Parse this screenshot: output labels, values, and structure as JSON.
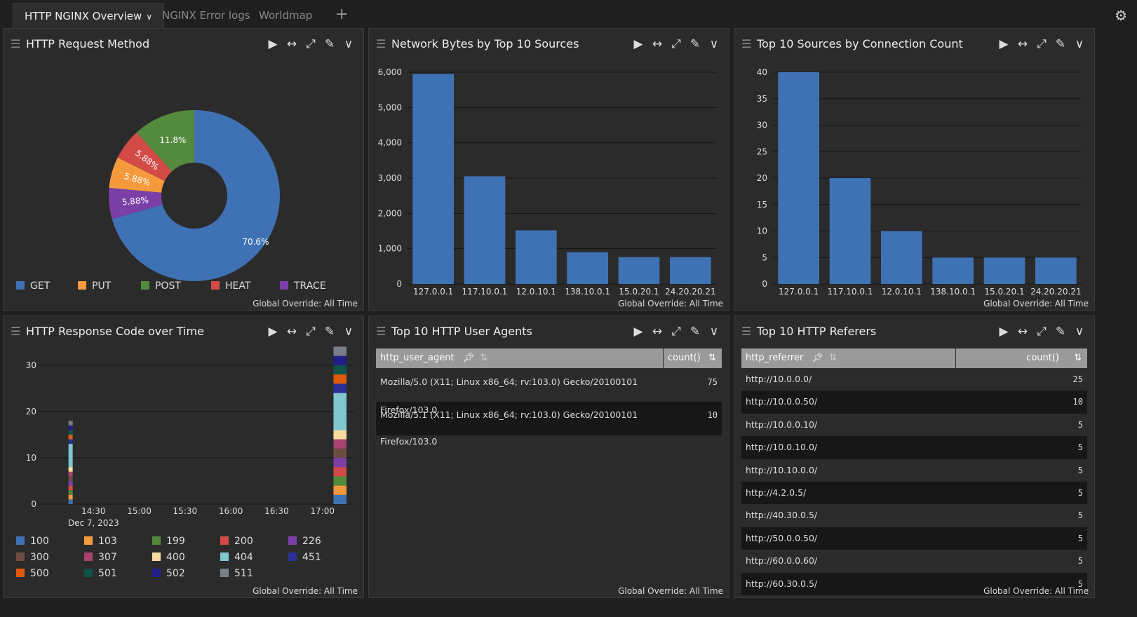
{
  "tabs": [
    {
      "label": "HTTP NGINX Overview",
      "active": true
    },
    {
      "label": "NGINX Error logs"
    },
    {
      "label": "Worldmap"
    }
  ],
  "footer_text": "Global Override: All Time",
  "panels": {
    "method": {
      "title": "HTTP Request Method"
    },
    "bytes": {
      "title": "Network Bytes by Top 10 Sources"
    },
    "conn": {
      "title": "Top 10 Sources by Connection Count"
    },
    "resp": {
      "title": "HTTP Response Code over Time"
    },
    "agents": {
      "title": "Top 10 HTTP User Agents"
    },
    "referers": {
      "title": "Top 10 HTTP Referers"
    }
  },
  "agents_table": {
    "col1": "http_user_agent",
    "col2": "count()",
    "rows": [
      {
        "agent": "Mozilla/5.0 (X11; Linux x86_64; rv:103.0) Gecko/20100101 Firefox/103.0",
        "count": "75"
      },
      {
        "agent": "Mozilla/5.1 (X11; Linux x86_64; rv:103.0) Gecko/20100101 Firefox/103.0",
        "count": "10"
      }
    ]
  },
  "referers_table": {
    "col1": "http_referrer",
    "col2": "count()",
    "rows": [
      {
        "ref": "http://10.0.0.0/",
        "count": "25"
      },
      {
        "ref": "http://10.0.0.50/",
        "count": "10"
      },
      {
        "ref": "http://10.0.0.10/",
        "count": "5"
      },
      {
        "ref": "http://10.0.10.0/",
        "count": "5"
      },
      {
        "ref": "http://10.10.0.0/",
        "count": "5"
      },
      {
        "ref": "http://4.2.0.5/",
        "count": "5"
      },
      {
        "ref": "http://40.30.0.5/",
        "count": "5"
      },
      {
        "ref": "http://50.0.0.50/",
        "count": "5"
      },
      {
        "ref": "http://60.0.0.60/",
        "count": "5"
      },
      {
        "ref": "http://60.30.0.5/",
        "count": "5"
      }
    ]
  },
  "chart_data": [
    {
      "id": "method",
      "type": "pie",
      "title": "HTTP Request Method",
      "slices": [
        {
          "label": "GET",
          "value": 70.6,
          "text": "70.6%",
          "color": "#3f72b4"
        },
        {
          "label": "TRACE",
          "value": 5.88,
          "text": "5.88%",
          "color": "#7b3fa8"
        },
        {
          "label": "PUT",
          "value": 5.88,
          "text": "5.88%",
          "color": "#f59a3c"
        },
        {
          "label": "HEAT",
          "value": 5.88,
          "text": "5.88%",
          "color": "#d24b46"
        },
        {
          "label": "POST",
          "value": 11.8,
          "text": "11.8%",
          "color": "#548a3c"
        }
      ],
      "legend": [
        "GET",
        "PUT",
        "POST",
        "HEAT",
        "TRACE"
      ]
    },
    {
      "id": "bytes",
      "type": "bar",
      "title": "Network Bytes by Top 10 Sources",
      "categories": [
        "127.0.0.1",
        "117.10.0.1",
        "12.0.10.1",
        "138.10.0.1",
        "15.0.20.1",
        "24.20.20.21"
      ],
      "values": [
        5950,
        3050,
        1520,
        900,
        760,
        760
      ],
      "ylim": [
        0,
        6000
      ],
      "yticks": [
        0,
        1000,
        2000,
        3000,
        4000,
        5000,
        6000
      ],
      "ytick_labels": [
        "0",
        "1,000",
        "2,000",
        "3,000",
        "4,000",
        "5,000",
        "6,000"
      ],
      "color": "#3f72b4"
    },
    {
      "id": "conn",
      "type": "bar",
      "title": "Top 10 Sources by Connection Count",
      "categories": [
        "127.0.0.1",
        "117.10.0.1",
        "12.0.10.1",
        "138.10.0.1",
        "15.0.20.1",
        "24.20.20.21"
      ],
      "values": [
        40,
        20,
        10,
        5,
        5,
        5
      ],
      "ylim": [
        0,
        40
      ],
      "yticks": [
        0,
        5,
        10,
        15,
        20,
        25,
        30,
        35,
        40
      ],
      "ytick_labels": [
        "0",
        "5",
        "10",
        "15",
        "20",
        "25",
        "30",
        "35",
        "40"
      ],
      "color": "#3f72b4"
    },
    {
      "id": "resp",
      "type": "bar",
      "stacked": true,
      "title": "HTTP Response Code over Time",
      "x_ticks": [
        "14:30",
        "15:00",
        "15:30",
        "16:00",
        "16:30",
        "17:00"
      ],
      "x_sub": "Dec 7, 2023",
      "ylim": [
        0,
        33
      ],
      "yticks": [
        0,
        10,
        20,
        30
      ],
      "ytick_labels": [
        "0",
        "10",
        "20",
        "30"
      ],
      "codes": [
        {
          "code": "100",
          "color": "#3f72b4"
        },
        {
          "code": "103",
          "color": "#f59a3c"
        },
        {
          "code": "199",
          "color": "#548a3c"
        },
        {
          "code": "200",
          "color": "#d24b46"
        },
        {
          "code": "226",
          "color": "#7b3fa8"
        },
        {
          "code": "300",
          "color": "#6d4c41"
        },
        {
          "code": "307",
          "color": "#a8426e"
        },
        {
          "code": "400",
          "color": "#f7dca0"
        },
        {
          "code": "404",
          "color": "#80c6cf"
        },
        {
          "code": "451",
          "color": "#2a2f96"
        },
        {
          "code": "500",
          "color": "#e05a0c"
        },
        {
          "code": "501",
          "color": "#0f5248"
        },
        {
          "code": "502",
          "color": "#221f8a"
        },
        {
          "code": "511",
          "color": "#7a7f87"
        }
      ],
      "stacks": [
        {
          "t": "14:15",
          "bars": [
            1,
            1,
            1,
            1,
            1,
            1,
            1,
            1,
            5,
            1,
            1,
            1,
            1,
            1
          ]
        },
        {
          "t": "17:10",
          "bars": [
            2,
            2,
            2,
            2,
            2,
            2,
            2,
            2,
            8,
            2,
            2,
            2,
            2,
            2
          ]
        },
        {
          "t": "17:13",
          "bars": [
            2,
            2,
            2,
            2,
            2,
            2,
            2,
            2,
            8,
            2,
            2,
            2,
            2,
            2
          ]
        }
      ]
    }
  ]
}
